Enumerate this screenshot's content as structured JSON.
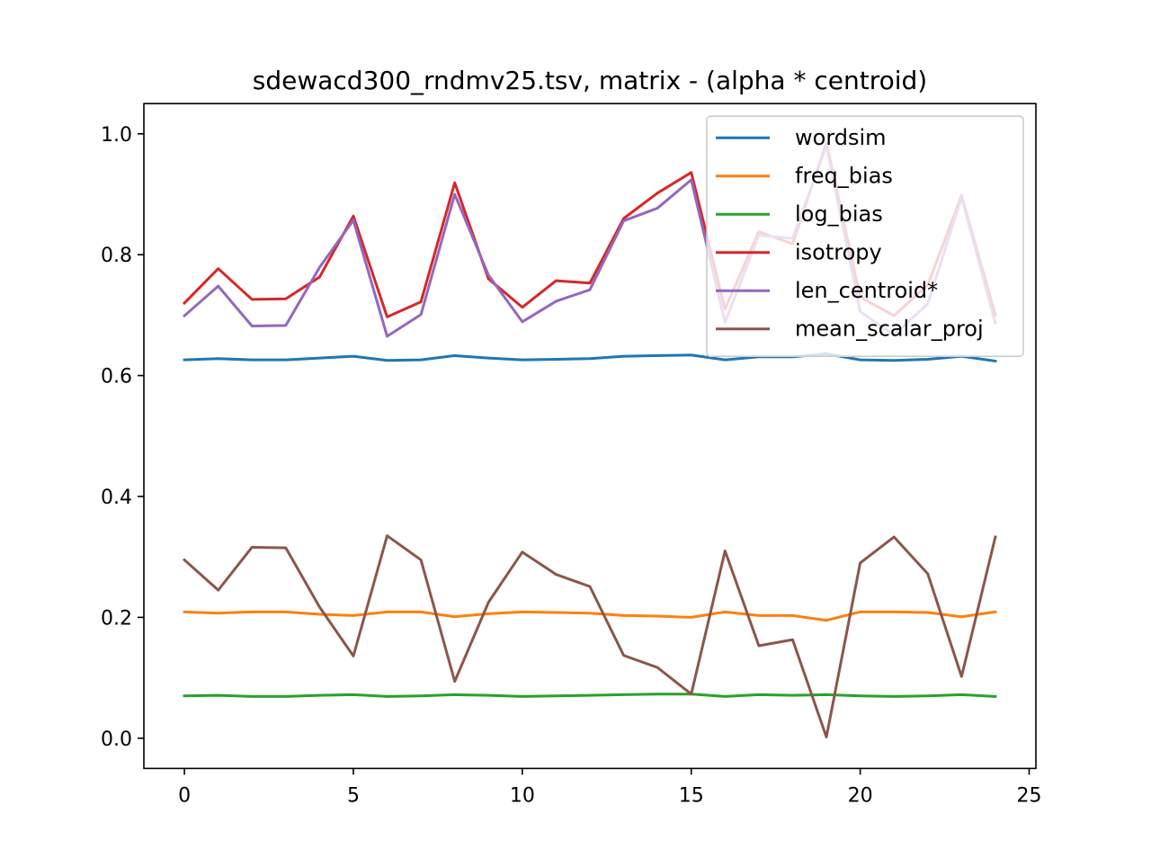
{
  "chart_data": {
    "type": "line",
    "title": "sdewacd300_rndmv25.tsv, matrix - (alpha * centroid)",
    "xlabel": "",
    "ylabel": "",
    "xlim": [
      -1.2,
      25.2
    ],
    "ylim": [
      -0.05,
      1.05
    ],
    "x_ticks": [
      0,
      5,
      10,
      15,
      20,
      25
    ],
    "x_tick_labels": [
      "0",
      "5",
      "10",
      "15",
      "20",
      "25"
    ],
    "y_ticks": [
      0.0,
      0.2,
      0.4,
      0.6,
      0.8,
      1.0
    ],
    "y_tick_labels": [
      "0.0",
      "0.2",
      "0.4",
      "0.6",
      "0.8",
      "1.0"
    ],
    "grid": false,
    "legend_position": "top-right",
    "x": [
      0,
      1,
      2,
      3,
      4,
      5,
      6,
      7,
      8,
      9,
      10,
      11,
      12,
      13,
      14,
      15,
      16,
      17,
      18,
      19,
      20,
      21,
      22,
      23,
      24
    ],
    "series": [
      {
        "name": "wordsim",
        "color": "#1f77b4",
        "values": [
          0.626,
          0.628,
          0.626,
          0.626,
          0.629,
          0.632,
          0.625,
          0.626,
          0.633,
          0.629,
          0.626,
          0.627,
          0.628,
          0.632,
          0.633,
          0.634,
          0.626,
          0.631,
          0.631,
          0.636,
          0.626,
          0.625,
          0.627,
          0.632,
          0.624
        ]
      },
      {
        "name": "freq_bias",
        "color": "#ff7f0e",
        "values": [
          0.209,
          0.207,
          0.209,
          0.209,
          0.205,
          0.203,
          0.209,
          0.209,
          0.201,
          0.206,
          0.209,
          0.208,
          0.207,
          0.203,
          0.202,
          0.2,
          0.209,
          0.203,
          0.203,
          0.195,
          0.209,
          0.209,
          0.208,
          0.201,
          0.209
        ]
      },
      {
        "name": "log_bias",
        "color": "#2ca02c",
        "values": [
          0.07,
          0.071,
          0.069,
          0.069,
          0.071,
          0.072,
          0.069,
          0.07,
          0.072,
          0.071,
          0.069,
          0.07,
          0.071,
          0.072,
          0.073,
          0.073,
          0.069,
          0.072,
          0.071,
          0.072,
          0.07,
          0.069,
          0.07,
          0.072,
          0.069
        ]
      },
      {
        "name": "isotropy",
        "color": "#d62728",
        "values": [
          0.72,
          0.777,
          0.726,
          0.727,
          0.763,
          0.864,
          0.697,
          0.722,
          0.919,
          0.76,
          0.713,
          0.757,
          0.753,
          0.86,
          0.902,
          0.936,
          0.71,
          0.838,
          0.818,
          0.985,
          0.73,
          0.699,
          0.75,
          0.898,
          0.7
        ]
      },
      {
        "name": "len_centroid*",
        "color": "#9467bd",
        "values": [
          0.699,
          0.748,
          0.682,
          0.683,
          0.779,
          0.857,
          0.665,
          0.701,
          0.9,
          0.766,
          0.689,
          0.723,
          0.742,
          0.856,
          0.877,
          0.924,
          0.688,
          0.832,
          0.827,
          0.98,
          0.706,
          0.667,
          0.719,
          0.895,
          0.687
        ]
      },
      {
        "name": "mean_scalar_proj",
        "color": "#8c564b",
        "values": [
          0.295,
          0.245,
          0.316,
          0.315,
          0.217,
          0.136,
          0.335,
          0.295,
          0.094,
          0.225,
          0.308,
          0.271,
          0.251,
          0.137,
          0.117,
          0.073,
          0.31,
          0.153,
          0.163,
          0.002,
          0.29,
          0.333,
          0.272,
          0.102,
          0.333
        ]
      }
    ]
  }
}
